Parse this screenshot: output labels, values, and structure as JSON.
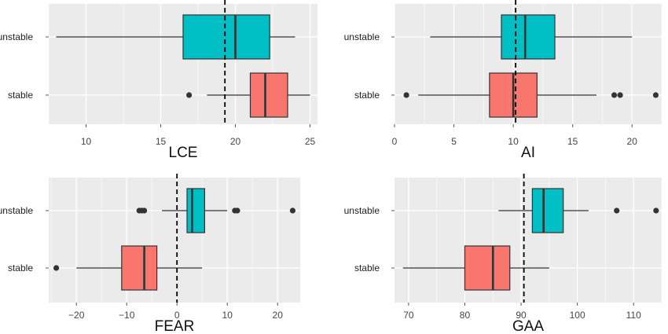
{
  "colors": {
    "unstable": "#00BFC4",
    "stable": "#F8766D",
    "panel_background": "#EBEBEB",
    "gridline": "#FFFFFF",
    "box_stroke": "#333333",
    "reference_line": "#000000"
  },
  "chart_data": [
    {
      "type": "boxplot",
      "xlabel": "LCE",
      "categories": [
        "unstable",
        "stable"
      ],
      "xlim": [
        7.5,
        25.5
      ],
      "xticks": [
        10,
        15,
        20,
        25
      ],
      "reference_line": 19.3,
      "grid": true,
      "boxes": [
        {
          "category": "unstable",
          "whisker_low": 8,
          "q1": 16.5,
          "median": 20,
          "q3": 22.3,
          "whisker_high": 24,
          "outliers": []
        },
        {
          "category": "stable",
          "whisker_low": 18.1,
          "q1": 21,
          "median": 22,
          "q3": 23.5,
          "whisker_high": 25,
          "outliers": [
            16.9
          ]
        }
      ]
    },
    {
      "type": "boxplot",
      "xlabel": "AI",
      "categories": [
        "unstable",
        "stable"
      ],
      "xlim": [
        0,
        22.5
      ],
      "xticks": [
        0,
        5,
        10,
        15,
        20
      ],
      "reference_line": 10.2,
      "grid": true,
      "boxes": [
        {
          "category": "unstable",
          "whisker_low": 3,
          "q1": 9,
          "median": 11,
          "q3": 13.5,
          "whisker_high": 20,
          "outliers": []
        },
        {
          "category": "stable",
          "whisker_low": 2,
          "q1": 8,
          "median": 10,
          "q3": 12,
          "whisker_high": 17,
          "outliers": [
            1,
            18.5,
            19,
            22
          ]
        }
      ]
    },
    {
      "type": "boxplot",
      "xlabel": "FEAR",
      "categories": [
        "unstable",
        "stable"
      ],
      "xlim": [
        -25.5,
        24.5
      ],
      "xticks": [
        -20,
        -10,
        0,
        10,
        20
      ],
      "reference_line": 0,
      "grid": true,
      "boxes": [
        {
          "category": "unstable",
          "whisker_low": -3,
          "q1": 2,
          "median": 3,
          "q3": 5.5,
          "whisker_high": 10,
          "outliers": [
            -7.5,
            -7,
            -6.5,
            11.5,
            12,
            23
          ]
        },
        {
          "category": "stable",
          "whisker_low": -20,
          "q1": -11,
          "median": -6.5,
          "q3": -4,
          "whisker_high": 5,
          "outliers": [
            -24
          ]
        }
      ]
    },
    {
      "type": "boxplot",
      "xlabel": "GAA",
      "categories": [
        "unstable",
        "stable"
      ],
      "xlim": [
        67.5,
        115
      ],
      "xticks": [
        70,
        80,
        90,
        100,
        110
      ],
      "reference_line": 90.5,
      "grid": true,
      "boxes": [
        {
          "category": "unstable",
          "whisker_low": 86,
          "q1": 92,
          "median": 94,
          "q3": 97.5,
          "whisker_high": 102,
          "outliers": [
            107,
            114
          ]
        },
        {
          "category": "stable",
          "whisker_low": 69,
          "q1": 80,
          "median": 85,
          "q3": 88,
          "whisker_high": 95,
          "outliers": []
        }
      ]
    }
  ]
}
